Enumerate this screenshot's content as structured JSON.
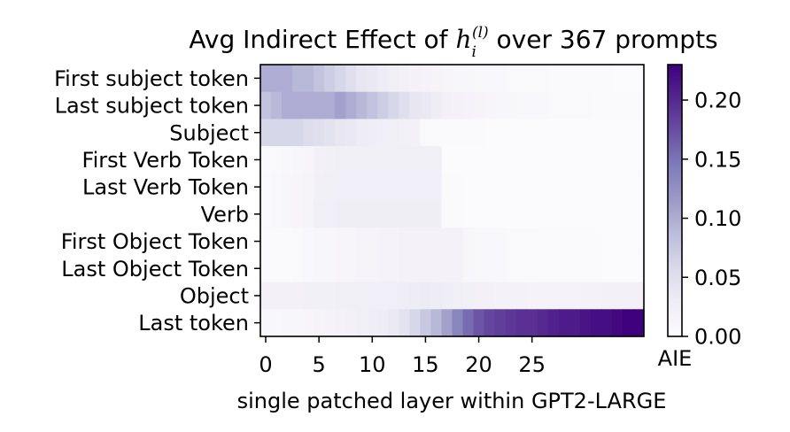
{
  "chart_data": {
    "type": "heatmap",
    "title": {
      "prefix": "Avg Indirect Effect of ",
      "math_base": "h",
      "math_sub": "i",
      "math_sup": "(l)",
      "suffix": " over 367 prompts"
    },
    "xlabel": "single patched layer within GPT2-LARGE",
    "xticks": [
      0,
      5,
      10,
      15,
      20,
      25
    ],
    "rows": [
      "First subject token",
      "Last subject token",
      "Subject",
      "First Verb Token",
      "Last Verb Token",
      "Verb",
      "First Object Token",
      "Last Object Token",
      "Object",
      "Last token"
    ],
    "n_layers": 36,
    "values": [
      [
        0.1,
        0.1,
        0.1,
        0.09,
        0.09,
        0.08,
        0.07,
        0.06,
        0.05,
        0.04,
        0.035,
        0.03,
        0.025,
        0.02,
        0.018,
        0.016,
        0.014,
        0.012,
        0.01,
        0.01,
        0.009,
        0.008,
        0.008,
        0.007,
        0.007,
        0.006,
        0.006,
        0.005,
        0.005,
        0.005,
        0.004,
        0.004,
        0.004,
        0.003,
        0.003,
        0.003
      ],
      [
        0.08,
        0.09,
        0.1,
        0.1,
        0.1,
        0.1,
        0.1,
        0.11,
        0.1,
        0.09,
        0.08,
        0.07,
        0.06,
        0.05,
        0.04,
        0.035,
        0.03,
        0.02,
        0.018,
        0.016,
        0.014,
        0.012,
        0.01,
        0.01,
        0.009,
        0.008,
        0.008,
        0.007,
        0.007,
        0.006,
        0.006,
        0.005,
        0.005,
        0.005,
        0.004,
        0.004
      ],
      [
        0.06,
        0.06,
        0.06,
        0.06,
        0.055,
        0.05,
        0.045,
        0.04,
        0.035,
        0.03,
        0.028,
        0.026,
        0.024,
        0.022,
        0.02,
        0.006,
        0.005,
        0.005,
        0.004,
        0.004,
        0.004,
        0.003,
        0.003,
        0.003,
        0.003,
        0.003,
        0.002,
        0.002,
        0.002,
        0.002,
        0.002,
        0.002,
        0.002,
        0.002,
        0.002,
        0.002
      ],
      [
        0.005,
        0.006,
        0.008,
        0.01,
        0.012,
        0.02,
        0.022,
        0.024,
        0.024,
        0.024,
        0.024,
        0.024,
        0.024,
        0.024,
        0.024,
        0.024,
        0.024,
        0.003,
        0.003,
        0.003,
        0.003,
        0.003,
        0.002,
        0.002,
        0.002,
        0.002,
        0.002,
        0.002,
        0.002,
        0.002,
        0.002,
        0.002,
        0.002,
        0.002,
        0.002,
        0.002
      ],
      [
        0.006,
        0.008,
        0.01,
        0.012,
        0.014,
        0.022,
        0.024,
        0.026,
        0.026,
        0.026,
        0.026,
        0.026,
        0.026,
        0.026,
        0.026,
        0.026,
        0.026,
        0.004,
        0.004,
        0.003,
        0.003,
        0.003,
        0.003,
        0.003,
        0.002,
        0.002,
        0.002,
        0.002,
        0.002,
        0.002,
        0.002,
        0.002,
        0.002,
        0.002,
        0.002,
        0.002
      ],
      [
        0.006,
        0.008,
        0.01,
        0.012,
        0.015,
        0.024,
        0.026,
        0.027,
        0.027,
        0.027,
        0.027,
        0.027,
        0.027,
        0.027,
        0.027,
        0.027,
        0.027,
        0.004,
        0.004,
        0.003,
        0.003,
        0.003,
        0.003,
        0.003,
        0.002,
        0.002,
        0.002,
        0.002,
        0.002,
        0.002,
        0.002,
        0.002,
        0.002,
        0.002,
        0.002,
        0.002
      ],
      [
        0.004,
        0.004,
        0.005,
        0.006,
        0.008,
        0.01,
        0.01,
        0.012,
        0.012,
        0.014,
        0.014,
        0.016,
        0.016,
        0.018,
        0.018,
        0.018,
        0.018,
        0.018,
        0.018,
        0.01,
        0.009,
        0.008,
        0.008,
        0.007,
        0.006,
        0.006,
        0.005,
        0.005,
        0.005,
        0.004,
        0.004,
        0.004,
        0.003,
        0.003,
        0.003,
        0.003
      ],
      [
        0.004,
        0.004,
        0.005,
        0.006,
        0.008,
        0.01,
        0.01,
        0.012,
        0.012,
        0.014,
        0.014,
        0.016,
        0.016,
        0.018,
        0.018,
        0.018,
        0.018,
        0.018,
        0.018,
        0.01,
        0.009,
        0.008,
        0.008,
        0.007,
        0.006,
        0.006,
        0.005,
        0.005,
        0.005,
        0.004,
        0.004,
        0.004,
        0.003,
        0.003,
        0.003,
        0.003
      ],
      [
        0.02,
        0.02,
        0.02,
        0.02,
        0.022,
        0.022,
        0.022,
        0.024,
        0.024,
        0.024,
        0.026,
        0.026,
        0.026,
        0.028,
        0.03,
        0.032,
        0.03,
        0.028,
        0.025,
        0.022,
        0.02,
        0.02,
        0.018,
        0.018,
        0.018,
        0.016,
        0.016,
        0.016,
        0.016,
        0.016,
        0.018,
        0.018,
        0.02,
        0.02,
        0.02,
        0.02
      ],
      [
        0.008,
        0.008,
        0.01,
        0.01,
        0.012,
        0.014,
        0.016,
        0.018,
        0.02,
        0.024,
        0.028,
        0.03,
        0.034,
        0.045,
        0.06,
        0.075,
        0.09,
        0.11,
        0.135,
        0.155,
        0.17,
        0.18,
        0.185,
        0.19,
        0.195,
        0.195,
        0.2,
        0.205,
        0.21,
        0.21,
        0.215,
        0.22,
        0.22,
        0.225,
        0.23,
        0.235
      ]
    ],
    "color_range": [
      0,
      0.23
    ],
    "colorbar": {
      "label": "AIE",
      "ticks": [
        0.0,
        0.05,
        0.1,
        0.15,
        0.2
      ],
      "tick_labels": [
        "0.00",
        "0.05",
        "0.10",
        "0.15",
        "0.20"
      ]
    },
    "colormap": "Purples",
    "colormap_stops": [
      "#fcfbfd",
      "#efedf5",
      "#dadaeb",
      "#bcbddc",
      "#9e9ac8",
      "#807dba",
      "#6a51a3",
      "#54278f",
      "#3f007d"
    ]
  }
}
